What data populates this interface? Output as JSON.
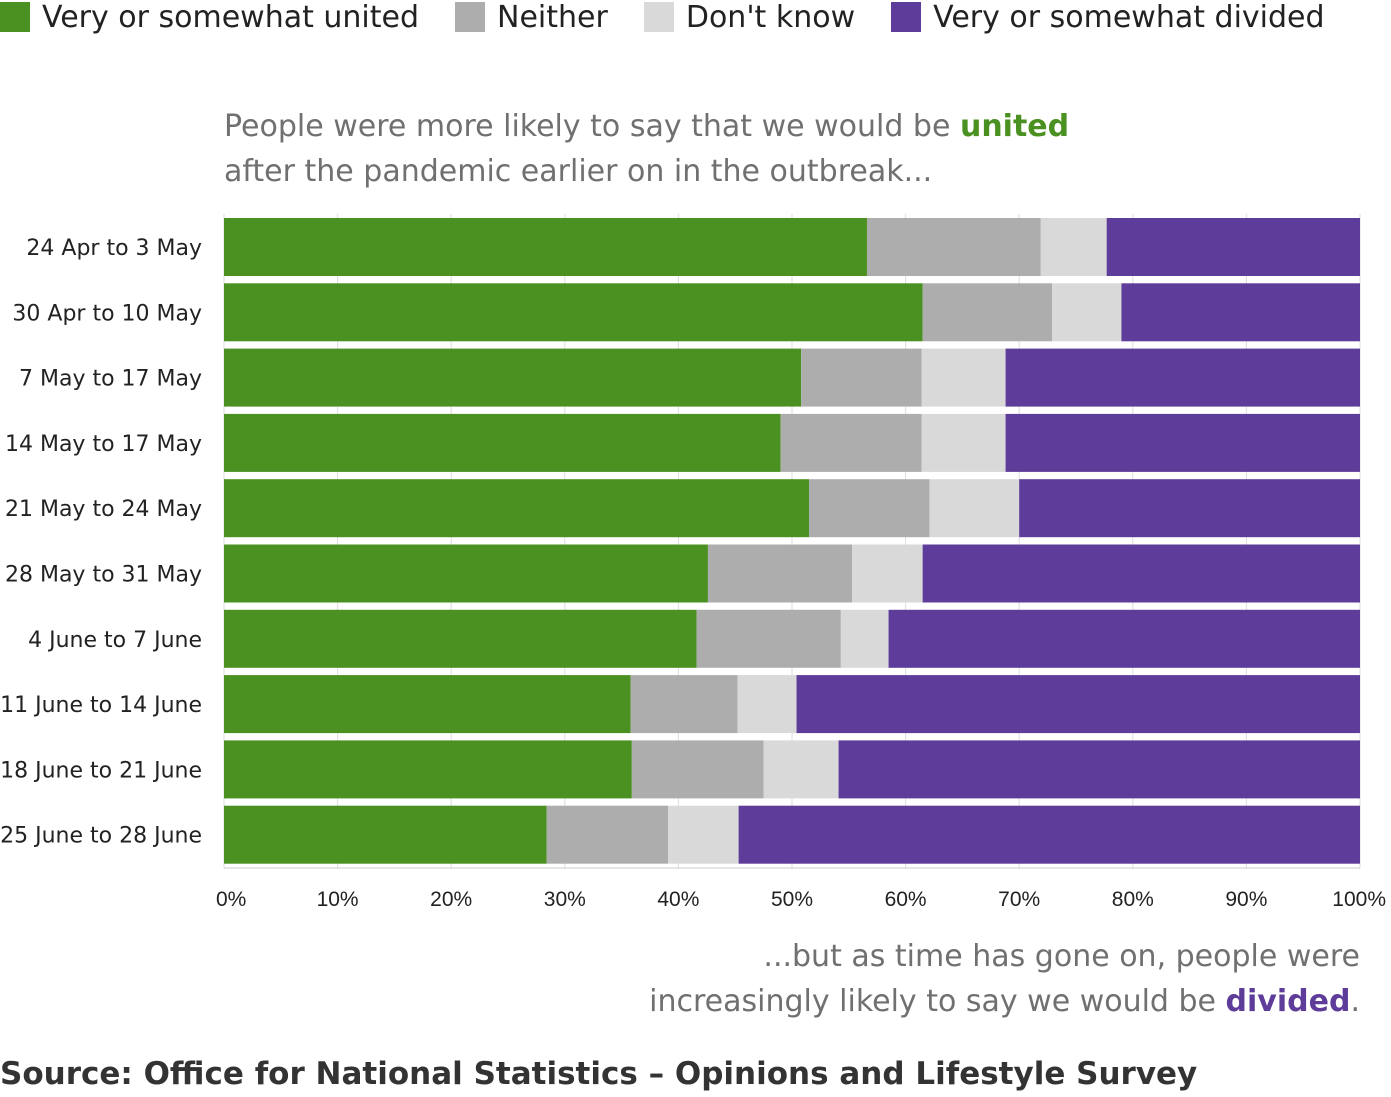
{
  "legend": [
    {
      "label": "Very or somewhat united",
      "color": "#4b9121"
    },
    {
      "label": "Neither",
      "color": "#adadad"
    },
    {
      "label": "Don't know",
      "color": "#d9d9d9"
    },
    {
      "label": "Very or somewhat divided",
      "color": "#5e3c99"
    }
  ],
  "annotation_top": {
    "before": "People were more likely to say that we would be ",
    "highlight": "united",
    "after": "after the pandemic earlier on in the outbreak..."
  },
  "annotation_bottom": {
    "line1": "...but as time has gone on, people were",
    "before": "increasingly likely to say we would be ",
    "highlight": "divided",
    "after": "."
  },
  "source": "Source: Office for National Statistics – Opinions and Lifestyle Survey",
  "chart_data": {
    "type": "bar",
    "orientation": "horizontal",
    "stacked": true,
    "categories": [
      "24 Apr to 3 May",
      "30 Apr to 10 May",
      "7 May to 17 May",
      "14 May to 17 May",
      "21 May to 24 May",
      "28 May to 31 May",
      "4 June to 7 June",
      "11 June to 14 June",
      "18 June to 21 June",
      "25 June to 28 June"
    ],
    "series": [
      {
        "name": "Very or somewhat united",
        "color": "#4b9121",
        "values": [
          56.6,
          61.5,
          50.8,
          49.0,
          51.5,
          42.6,
          41.6,
          35.8,
          35.9,
          28.4
        ]
      },
      {
        "name": "Neither",
        "color": "#adadad",
        "values": [
          15.3,
          11.4,
          10.6,
          12.4,
          10.6,
          12.7,
          12.7,
          9.4,
          11.6,
          10.7
        ]
      },
      {
        "name": "Don't know",
        "color": "#d9d9d9",
        "values": [
          5.8,
          6.1,
          7.4,
          7.4,
          7.9,
          6.2,
          4.2,
          5.2,
          6.6,
          6.2
        ]
      },
      {
        "name": "Very or somewhat divided",
        "color": "#5e3c99",
        "values": [
          22.3,
          21.0,
          31.2,
          31.2,
          30.0,
          38.5,
          41.5,
          49.6,
          45.9,
          54.7
        ]
      }
    ],
    "xlim": [
      0,
      100
    ],
    "xticks": [
      "0%",
      "10%",
      "20%",
      "30%",
      "40%",
      "50%",
      "60%",
      "70%",
      "80%",
      "90%",
      "100%"
    ],
    "grid": true,
    "legend_position": "top"
  }
}
